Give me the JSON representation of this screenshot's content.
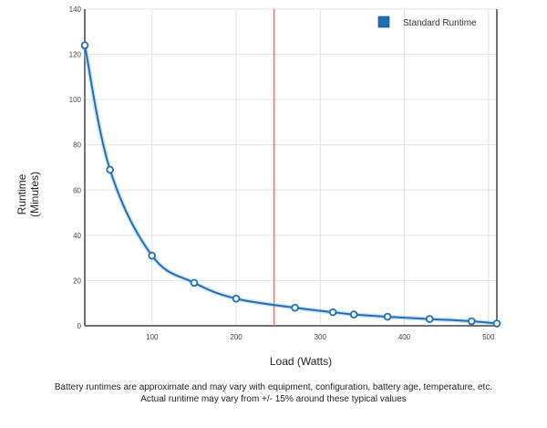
{
  "chart_data": {
    "type": "line",
    "xlabel": "Load (Watts)",
    "ylabel": "Runtime (Minutes)",
    "ylabel_lines": [
      "Runtime",
      "(Minutes)"
    ],
    "xlim": [
      20,
      510
    ],
    "ylim": [
      0,
      140
    ],
    "xticks": [
      100,
      200,
      300,
      400,
      500
    ],
    "yticks": [
      0,
      20,
      40,
      60,
      80,
      100,
      120,
      140
    ],
    "grid": true,
    "legend_position": "top-right",
    "series": [
      {
        "name": "Standard Runtime",
        "color": "#1f6fb5",
        "x": [
          20,
          50,
          100,
          150,
          200,
          270,
          315,
          340,
          380,
          430,
          480,
          510
        ],
        "y": [
          124,
          69,
          31,
          19,
          12,
          8,
          6,
          5,
          4,
          3,
          2,
          1
        ]
      }
    ],
    "reference_line": {
      "x": 245,
      "color": "#e07a70"
    }
  },
  "footer": {
    "line1": "Battery runtimes are approximate and may vary with equipment, configuration, battery age, temperature, etc.",
    "line2": "Actual runtime may vary from +/- 15% around these typical values"
  }
}
